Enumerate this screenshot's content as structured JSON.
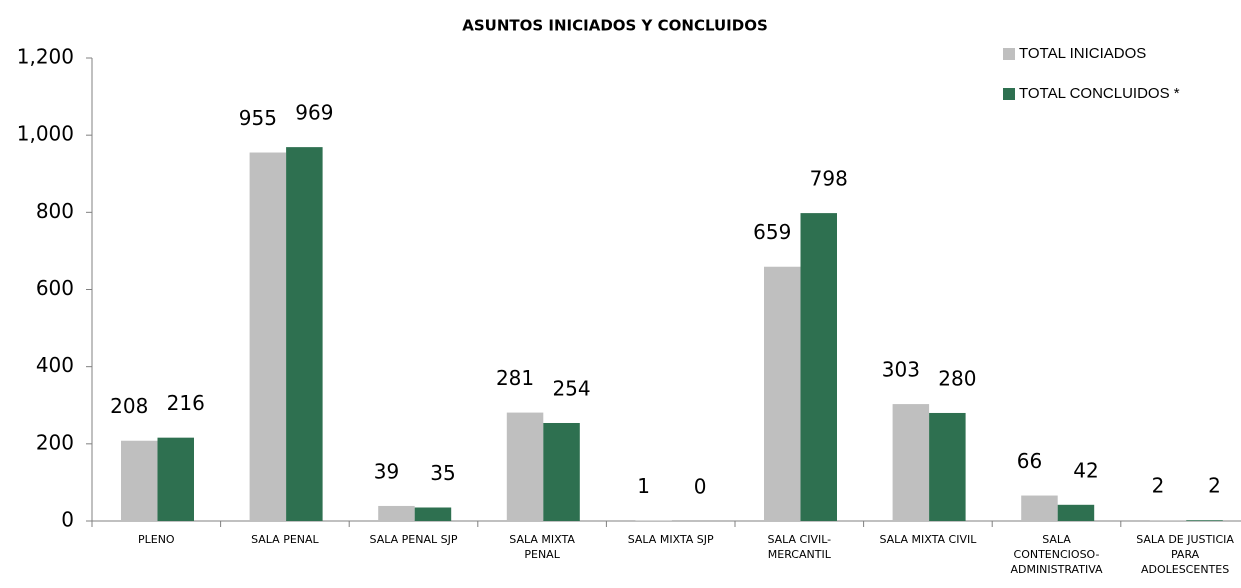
{
  "chart_data": {
    "type": "bar",
    "title": "ASUNTOS INICIADOS Y CONCLUIDOS",
    "categories": [
      "PLENO",
      "SALA PENAL",
      "SALA PENAL SJP",
      "SALA MIXTA PENAL",
      "SALA MIXTA SJP",
      "SALA CIVIL-MERCANTIL",
      "SALA MIXTA CIVIL",
      "SALA CONTENCIOSO-ADMINISTRATIVA",
      "SALA DE JUSTICIA PARA ADOLESCENTES"
    ],
    "series": [
      {
        "name": "TOTAL INICIADOS",
        "color": "#bfbfbf",
        "values": [
          208,
          955,
          39,
          281,
          1,
          659,
          303,
          66,
          2
        ]
      },
      {
        "name": "TOTAL CONCLUIDOS *",
        "color": "#2e7050",
        "values": [
          216,
          969,
          35,
          254,
          0,
          798,
          280,
          42,
          2
        ]
      }
    ],
    "ylim": [
      0,
      1200
    ],
    "yticks": [
      0,
      200,
      400,
      600,
      800,
      {
        "value": 1000,
        "label": "1,000"
      },
      {
        "value": 1200,
        "label": "1,200"
      }
    ],
    "grid": false,
    "legend": "top-right"
  }
}
